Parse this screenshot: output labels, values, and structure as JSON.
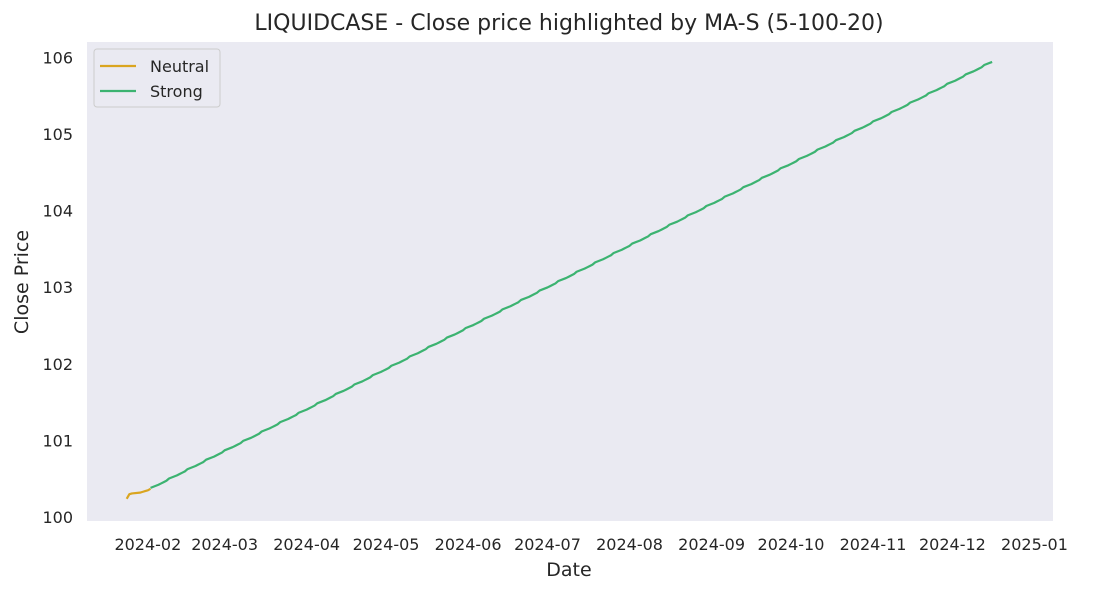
{
  "chart_data": {
    "type": "line",
    "title": "LIQUIDCASE - Close price highlighted by MA-S (5-100-20)",
    "xlabel": "Date",
    "ylabel": "Close Price",
    "xlim": [
      "2024-01-09",
      "2025-01-08"
    ],
    "ylim": [
      99.95,
      106.2
    ],
    "x_ticks": [
      "2024-02",
      "2024-03",
      "2024-04",
      "2024-05",
      "2024-06",
      "2024-07",
      "2024-08",
      "2024-09",
      "2024-10",
      "2024-11",
      "2024-12",
      "2025-01"
    ],
    "y_ticks": [
      "100",
      "101",
      "102",
      "103",
      "104",
      "105",
      "106"
    ],
    "grid": false,
    "legend_position": "top-left",
    "start_date": "2024-01-24",
    "end_date": "2024-12-16",
    "series": [
      {
        "name": "Neutral",
        "color": "#DAA520",
        "x": [
          "2024-01-24",
          "2024-01-25",
          "2024-01-26",
          "2024-01-29",
          "2024-01-30",
          "2024-01-31",
          "2024-02-01",
          "2024-02-02"
        ],
        "y": [
          100.24,
          100.3,
          100.31,
          100.32,
          100.33,
          100.34,
          100.35,
          100.37
        ]
      },
      {
        "name": "Strong",
        "color": "#3CB371",
        "x": [
          "2024-02-02",
          "2024-12-16"
        ],
        "y": [
          100.37,
          105.94
        ]
      }
    ]
  }
}
